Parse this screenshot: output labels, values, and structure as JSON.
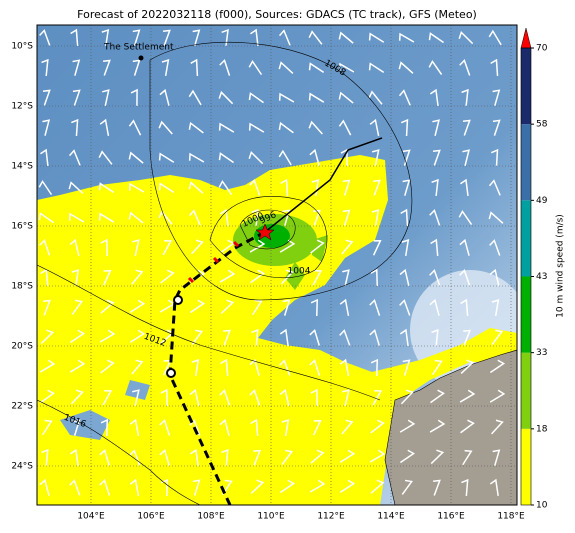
{
  "title": "Forecast of 2022032118 (f000), Sources: GDACS (TC track), GFS (Meteo)",
  "map": {
    "lat_labels": [
      "10°S",
      "12°S",
      "14°S",
      "16°S",
      "18°S",
      "20°S",
      "22°S",
      "24°S"
    ],
    "lon_labels": [
      "104°E",
      "106°E",
      "108°E",
      "110°E",
      "112°E",
      "114°E",
      "116°E",
      "118°E"
    ],
    "place_label": "The Settlement",
    "contour_labels": [
      "1008",
      "1000",
      "996",
      "1004",
      "1012",
      "1016"
    ]
  },
  "colorbar": {
    "label": "10 m wind speed (m/s)",
    "ticks": [
      "10",
      "18",
      "33",
      "43",
      "49",
      "58",
      "70"
    ]
  }
}
